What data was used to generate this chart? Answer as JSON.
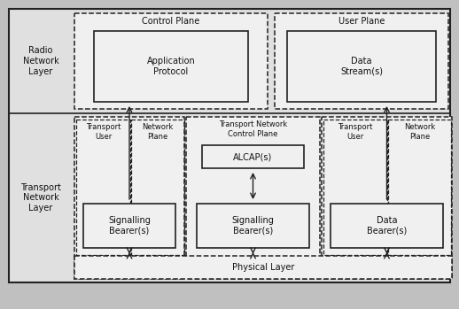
{
  "bg_color": "#c0c0c0",
  "fill_white": "#f0f0f0",
  "fill_light": "#e0e0e0",
  "line_color": "#222222",
  "text_color": "#111111",
  "label_fontsize": 7.0,
  "small_fontsize": 6.0,
  "radio_layer_label": "Radio\nNetwork\nLayer",
  "transport_layer_label": "Transport\nNetwork\nLayer",
  "control_plane_label": "Control Plane",
  "user_plane_label": "User Plane",
  "app_protocol_label": "Application\nProtocol",
  "data_stream_label": "Data\nStream(s)",
  "transport_user_label": "Transport\nUser",
  "network_plane_label1": "Network\nPlane",
  "tn_control_plane_label": "Transport Network\nControl Plane",
  "alcap_label": "ALCAP(s)",
  "sig_bearer1_label": "Signalling\nBearer(s)",
  "sig_bearer2_label": "Signalling\nBearer(s)",
  "data_bearer_label": "Data\nBearer(s)",
  "transport_user2_label": "Transport\nUser",
  "network_plane_label2": "Network\nPlane",
  "physical_layer_label": "Physical Layer"
}
